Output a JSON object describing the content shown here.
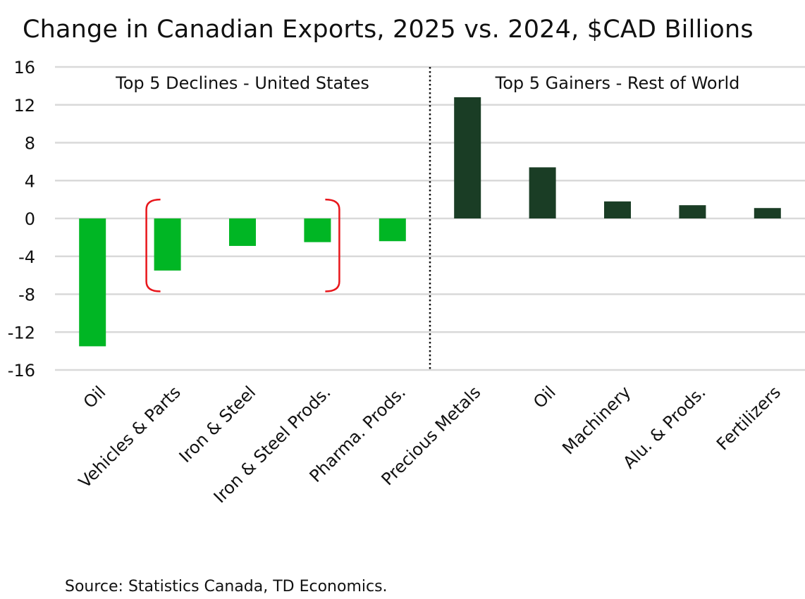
{
  "chart_data": {
    "type": "bar",
    "title": "Change in Canadian Exports, 2025 vs. 2024, $CAD Billions",
    "ylim": [
      -16,
      16
    ],
    "y_ticks": [
      16,
      12,
      8,
      4,
      0,
      -4,
      -8,
      -12,
      -16
    ],
    "grid": true,
    "groups": [
      {
        "label": "Top 5 Declines - United States",
        "color": "#00b624",
        "categories": [
          "Oil",
          "Vehicles & Parts",
          "Iron & Steel",
          "Iron & Steel Prods.",
          "Pharma. Prods."
        ],
        "values": [
          -13.5,
          -5.5,
          -2.9,
          -2.5,
          -2.4
        ]
      },
      {
        "label": "Top 5 Gainers - Rest of World",
        "color": "#1a3d25",
        "categories": [
          "Precious Metals",
          "Oil",
          "Machinery",
          "Alu. & Prods.",
          "Fertilizers"
        ],
        "values": [
          12.8,
          5.4,
          1.8,
          1.4,
          1.1
        ]
      }
    ],
    "annotation": {
      "type": "bracket",
      "color": "#e8161b",
      "covers": [
        "Vehicles & Parts",
        "Iron & Steel Prods."
      ]
    }
  },
  "source": "Source: Statistics Canada, TD Economics."
}
